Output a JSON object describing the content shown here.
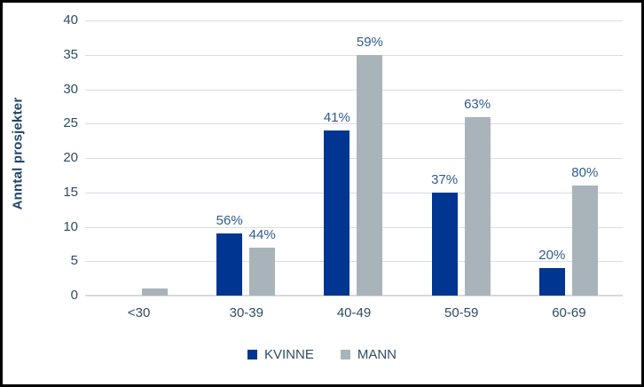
{
  "chart_data": {
    "type": "bar",
    "title": "",
    "ylabel": "Anntal prosjekter",
    "xlabel": "",
    "categories": [
      "<30",
      "30-39",
      "40-49",
      "50-59",
      "60-69"
    ],
    "series": [
      {
        "name": "KVINNE",
        "color": "#003591",
        "values": [
          0,
          9,
          24,
          15,
          4
        ],
        "bar_labels": [
          "",
          "56%",
          "41%",
          "37%",
          "20%"
        ]
      },
      {
        "name": "MANN",
        "color": "#A9B4BA",
        "values": [
          1,
          7,
          35,
          26,
          16
        ],
        "bar_labels": [
          "",
          "44%",
          "59%",
          "63%",
          "80%"
        ]
      }
    ],
    "ylim": [
      0,
      40
    ],
    "yticks": [
      0,
      5,
      10,
      15,
      20,
      25,
      30,
      35,
      40
    ],
    "grid": true,
    "legend_position": "bottom"
  },
  "colors": {
    "gridline": "#D8DCE6",
    "axis_line": "#D9D9D9",
    "tick_label": "#2E4C63",
    "data_label": "#2F5B8F",
    "axis_title": "#24466B",
    "legend_text": "#2E4C63",
    "frame_border": "#000000",
    "background": "#FFFFFF"
  }
}
